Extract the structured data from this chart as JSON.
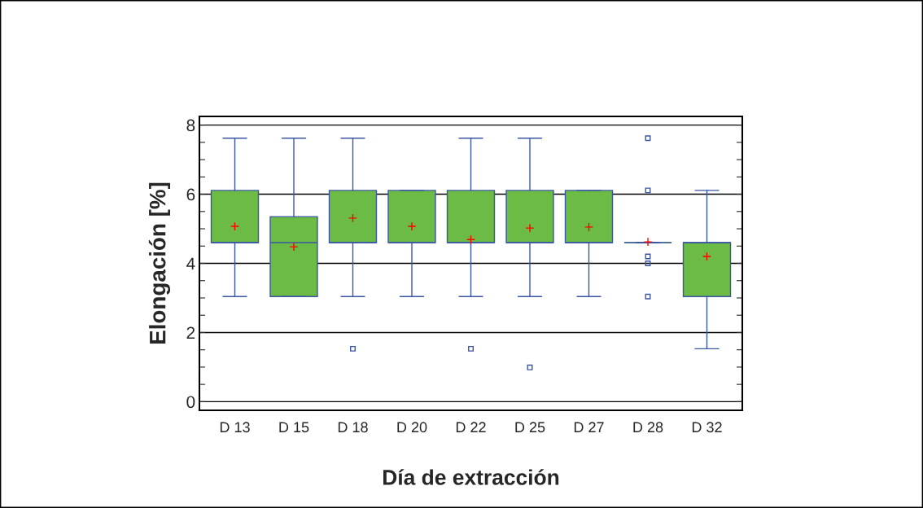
{
  "chart_data": {
    "type": "box",
    "xlabel": "Día de extracción",
    "ylabel": "Elongación [%]",
    "categories": [
      "D 13",
      "D 15",
      "D 18",
      "D 20",
      "D 22",
      "D 25",
      "D 27",
      "D 28",
      "D 32"
    ],
    "color": "#6cbb45",
    "boxes": [
      {
        "low": 3.04,
        "q1": 4.6,
        "median": 4.6,
        "q3": 6.11,
        "high": 7.62,
        "mean": 5.07
      },
      {
        "low": 3.04,
        "q1": 3.04,
        "median": 4.6,
        "q3": 5.35,
        "high": 7.62,
        "mean": 4.48
      },
      {
        "low": 3.04,
        "q1": 4.6,
        "median": 4.6,
        "q3": 6.11,
        "high": 7.62,
        "mean": 5.31,
        "outliers": [
          1.53
        ]
      },
      {
        "low": 3.04,
        "q1": 4.6,
        "median": 4.6,
        "q3": 6.11,
        "high": 6.11,
        "mean": 5.07
      },
      {
        "low": 3.04,
        "q1": 4.6,
        "median": 4.6,
        "q3": 6.11,
        "high": 7.62,
        "mean": 4.69,
        "outliers": [
          1.53
        ]
      },
      {
        "low": 3.04,
        "q1": 4.6,
        "median": 4.6,
        "q3": 6.11,
        "high": 7.62,
        "mean": 5.02,
        "outliers": [
          0.99
        ]
      },
      {
        "low": 3.04,
        "q1": 4.6,
        "median": 4.6,
        "q3": 6.11,
        "high": 6.11,
        "mean": 5.05
      },
      {
        "low": 4.6,
        "q1": 4.6,
        "median": 4.6,
        "q3": 4.6,
        "high": 4.6,
        "mean": 4.62,
        "outliers": [
          7.62,
          6.11,
          4.2,
          4.0,
          3.04
        ]
      },
      {
        "low": 1.53,
        "q1": 3.04,
        "median": 4.6,
        "q3": 4.6,
        "high": 6.11,
        "mean": 4.2
      }
    ],
    "ylim": [
      -0.25,
      8.25
    ],
    "yticks": [
      0,
      {
        "value": 0.5,
        "label": null
      },
      {
        "value": 1,
        "label": null
      },
      {
        "value": 1.5,
        "label": null
      },
      2,
      {
        "value": 2.5,
        "label": null
      },
      {
        "value": 3,
        "label": null
      },
      {
        "value": 3.5,
        "label": null
      },
      4,
      {
        "value": 4.5,
        "label": null
      },
      {
        "value": 5,
        "label": null
      },
      {
        "value": 5.5,
        "label": null
      },
      6,
      {
        "value": 6.5,
        "label": null
      },
      {
        "value": 7,
        "label": null
      },
      {
        "value": 7.5,
        "label": null
      },
      8
    ],
    "grid": "y"
  }
}
